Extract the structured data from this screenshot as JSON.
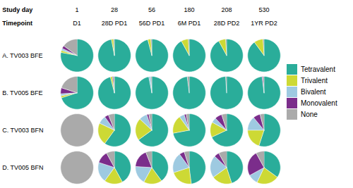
{
  "chart_data": {
    "type": "pie",
    "categories": [
      "Tetravalent",
      "Trivalent",
      "Bivalent",
      "Monovalent",
      "None"
    ],
    "colors": [
      "#2aad9a",
      "#cdd935",
      "#9ecae1",
      "#7b2d8b",
      "#aaaaaa"
    ],
    "legend": "right",
    "column_headers": [
      {
        "label": "Study day",
        "values": [
          "1",
          "28",
          "56",
          "180",
          "208",
          "530"
        ]
      },
      {
        "label": "Timepoint",
        "values": [
          "D1",
          "28D PD1",
          "56D PD1",
          "6M PD1",
          "28D PD2",
          "1YR PD2"
        ]
      }
    ],
    "rows": [
      {
        "label": "A. TV003 BFE",
        "pies": [
          [
            78,
            2,
            2,
            3,
            15
          ],
          [
            97,
            2,
            0,
            0,
            1
          ],
          [
            96,
            3,
            0,
            0,
            1
          ],
          [
            92,
            7,
            0,
            0,
            1
          ],
          [
            92,
            7,
            0,
            0,
            1
          ],
          [
            90,
            9,
            0,
            0,
            1
          ]
        ]
      },
      {
        "label": "B. TV005 BFE",
        "pies": [
          [
            70,
            2,
            2,
            6,
            20
          ],
          [
            96,
            2,
            0,
            1,
            1
          ],
          [
            97,
            0,
            2,
            0,
            1
          ],
          [
            98,
            0,
            0,
            0,
            2
          ],
          [
            99,
            0,
            0,
            0,
            1
          ],
          [
            98,
            0,
            0,
            1,
            1
          ]
        ]
      },
      {
        "label": "C. TV003 BFN",
        "pies": [
          [
            0,
            0,
            0,
            0,
            100
          ],
          [
            60,
            22,
            8,
            4,
            6
          ],
          [
            65,
            22,
            8,
            2,
            3
          ],
          [
            72,
            18,
            5,
            2,
            3
          ],
          [
            68,
            15,
            5,
            7,
            5
          ],
          [
            55,
            20,
            14,
            7,
            4
          ]
        ]
      },
      {
        "label": "D. TV005 BFN",
        "pies": [
          [
            0,
            0,
            0,
            0,
            100
          ],
          [
            42,
            18,
            20,
            12,
            8
          ],
          [
            40,
            18,
            18,
            18,
            6
          ],
          [
            48,
            22,
            20,
            5,
            5
          ],
          [
            45,
            20,
            22,
            5,
            8
          ],
          [
            35,
            22,
            10,
            25,
            8
          ]
        ]
      }
    ]
  }
}
